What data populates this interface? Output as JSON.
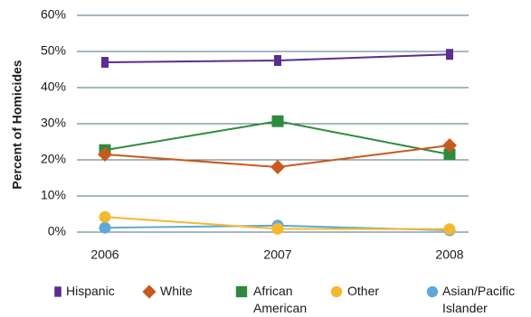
{
  "chart_data": {
    "type": "line",
    "title": "",
    "xlabel": "",
    "ylabel": "Percent of Homicides",
    "categories": [
      "2006",
      "2007",
      "2008"
    ],
    "ylim": [
      0,
      60
    ],
    "yticks": [
      "0%",
      "10%",
      "20%",
      "30%",
      "40%",
      "50%",
      "60%"
    ],
    "grid": true,
    "legend_position": "bottom",
    "series": [
      {
        "name": "Hispanic",
        "legend_lines": [
          "Hispanic"
        ],
        "values": [
          47,
          47.5,
          49.2
        ],
        "color": "#5b2d8e",
        "marker": "bar"
      },
      {
        "name": "White",
        "legend_lines": [
          "White"
        ],
        "values": [
          21.5,
          18,
          24
        ],
        "color": "#c85a1e",
        "marker": "diamond"
      },
      {
        "name": "African American",
        "legend_lines": [
          "African",
          "American"
        ],
        "values": [
          22.7,
          30.7,
          21.5
        ],
        "color": "#2e8b3e",
        "marker": "square"
      },
      {
        "name": "Other",
        "legend_lines": [
          "Other"
        ],
        "values": [
          4.2,
          0.9,
          0.8
        ],
        "color": "#f5b82e",
        "marker": "circle"
      },
      {
        "name": "Asian/Pacific Islander",
        "legend_lines": [
          "Asian/Pacific",
          "Islander"
        ],
        "values": [
          1.2,
          1.8,
          0.5
        ],
        "color": "#5fa8d8",
        "marker": "circle"
      }
    ]
  }
}
